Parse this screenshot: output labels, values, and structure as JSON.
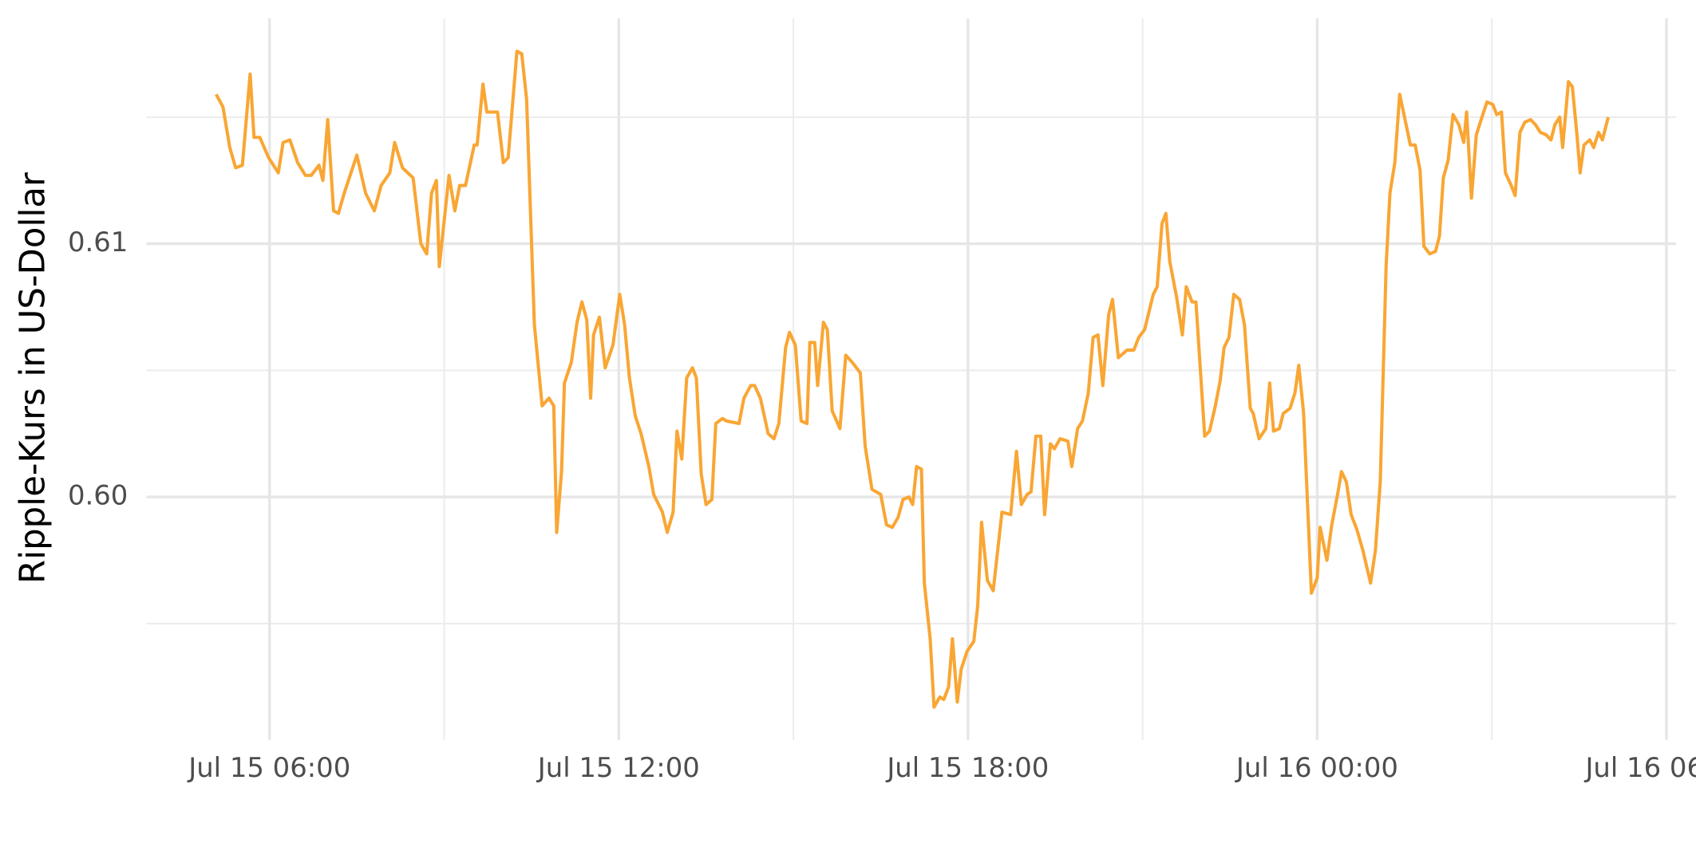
{
  "chart_data": {
    "type": "line",
    "y_label": "Ripple-Kurs in US-Dollar",
    "color": "#f9a634",
    "xlim": [
      "Jul 15 03:53",
      "Jul 16 06:10"
    ],
    "xticks": [
      "Jul 15 06:00",
      "Jul 15 12:00",
      "Jul 15 18:00",
      "Jul 16 00:00",
      "Jul 16 06:00"
    ],
    "minor_xticks": [
      "Jul 15 09:00",
      "Jul 15 15:00",
      "Jul 15 21:00",
      "Jul 16 03:00"
    ],
    "ylim": [
      0.5904,
      0.6189
    ],
    "yticks": [
      {
        "value": 0.6,
        "label": "0.60"
      },
      0.61
    ],
    "minor_yticks": [
      0.595,
      0.605,
      0.615
    ],
    "grid": true,
    "x": [
      "Jul 15 05:05",
      "Jul 15 05:12",
      "Jul 15 05:19",
      "Jul 15 05:25",
      "Jul 15 05:32",
      "Jul 15 05:40",
      "Jul 15 05:44",
      "Jul 15 05:50",
      "Jul 15 05:59",
      "Jul 15 06:09",
      "Jul 15 06:14",
      "Jul 15 06:21",
      "Jul 15 06:29",
      "Jul 15 06:37",
      "Jul 15 06:43",
      "Jul 15 06:51",
      "Jul 15 06:55",
      "Jul 15 07:00",
      "Jul 15 07:06",
      "Jul 15 07:11",
      "Jul 15 07:17",
      "Jul 15 07:30",
      "Jul 15 07:39",
      "Jul 15 07:48",
      "Jul 15 07:55",
      "Jul 15 08:04",
      "Jul 15 08:09",
      "Jul 15 08:17",
      "Jul 15 08:28",
      "Jul 15 08:36",
      "Jul 15 08:42",
      "Jul 15 08:47",
      "Jul 15 08:52",
      "Jul 15 08:55",
      "Jul 15 09:05",
      "Jul 15 09:11",
      "Jul 15 09:16",
      "Jul 15 09:22",
      "Jul 15 09:31",
      "Jul 15 09:34",
      "Jul 15 09:40",
      "Jul 15 09:44",
      "Jul 15 09:55",
      "Jul 15 10:01",
      "Jul 15 10:06",
      "Jul 15 10:15",
      "Jul 15 10:20",
      "Jul 15 10:25",
      "Jul 15 10:33",
      "Jul 15 10:41",
      "Jul 15 10:48",
      "Jul 15 10:53",
      "Jul 15 10:56",
      "Jul 15 11:01",
      "Jul 15 11:04",
      "Jul 15 11:11",
      "Jul 15 11:17",
      "Jul 15 11:22",
      "Jul 15 11:27",
      "Jul 15 11:31",
      "Jul 15 11:34",
      "Jul 15 11:40",
      "Jul 15 11:46",
      "Jul 15 11:54",
      "Jul 15 12:01",
      "Jul 15 12:06",
      "Jul 15 12:11",
      "Jul 15 12:17",
      "Jul 15 12:23",
      "Jul 15 12:31",
      "Jul 15 12:36",
      "Jul 15 12:45",
      "Jul 15 12:50",
      "Jul 15 12:56",
      "Jul 15 13:00",
      "Jul 15 13:05",
      "Jul 15 13:10",
      "Jul 15 13:16",
      "Jul 15 13:20",
      "Jul 15 13:25",
      "Jul 15 13:30",
      "Jul 15 13:36",
      "Jul 15 13:40",
      "Jul 15 13:47",
      "Jul 15 13:51",
      "Jul 15 14:04",
      "Jul 15 14:09",
      "Jul 15 14:16",
      "Jul 15 14:20",
      "Jul 15 14:26",
      "Jul 15 14:34",
      "Jul 15 14:40",
      "Jul 15 14:45",
      "Jul 15 14:52",
      "Jul 15 14:56",
      "Jul 15 15:02",
      "Jul 15 15:08",
      "Jul 15 15:14",
      "Jul 15 15:17",
      "Jul 15 15:22",
      "Jul 15 15:25",
      "Jul 15 15:31",
      "Jul 15 15:35",
      "Jul 15 15:40",
      "Jul 15 15:48",
      "Jul 15 15:54",
      "Jul 15 16:01",
      "Jul 15 16:09",
      "Jul 15 16:14",
      "Jul 15 16:21",
      "Jul 15 16:30",
      "Jul 15 16:36",
      "Jul 15 16:42",
      "Jul 15 16:48",
      "Jul 15 16:53",
      "Jul 15 16:59",
      "Jul 15 17:03",
      "Jul 15 17:07",
      "Jul 15 17:12",
      "Jul 15 17:15",
      "Jul 15 17:21",
      "Jul 15 17:25",
      "Jul 15 17:31",
      "Jul 15 17:35",
      "Jul 15 17:40",
      "Jul 15 17:44",
      "Jul 15 17:49",
      "Jul 15 17:53",
      "Jul 15 17:59",
      "Jul 15 18:06",
      "Jul 15 18:10",
      "Jul 15 18:14",
      "Jul 15 18:20",
      "Jul 15 18:26",
      "Jul 15 18:35",
      "Jul 15 18:44",
      "Jul 15 18:50",
      "Jul 15 18:55",
      "Jul 15 19:01",
      "Jul 15 19:05",
      "Jul 15 19:10",
      "Jul 15 19:15",
      "Jul 15 19:19",
      "Jul 15 19:25",
      "Jul 15 19:29",
      "Jul 15 19:35",
      "Jul 15 19:43",
      "Jul 15 19:47",
      "Jul 15 19:53",
      "Jul 15 19:58",
      "Jul 15 20:04",
      "Jul 15 20:09",
      "Jul 15 20:14",
      "Jul 15 20:19",
      "Jul 15 20:25",
      "Jul 15 20:29",
      "Jul 15 20:35",
      "Jul 15 20:44",
      "Jul 15 20:51",
      "Jul 15 20:56",
      "Jul 15 21:02",
      "Jul 15 21:11",
      "Jul 15 21:15",
      "Jul 15 21:20",
      "Jul 15 21:24",
      "Jul 15 21:28",
      "Jul 15 21:35",
      "Jul 15 21:41",
      "Jul 15 21:45",
      "Jul 15 21:51",
      "Jul 15 21:55",
      "Jul 15 22:04",
      "Jul 15 22:09",
      "Jul 15 22:15",
      "Jul 15 22:20",
      "Jul 15 22:24",
      "Jul 15 22:29",
      "Jul 15 22:34",
      "Jul 15 22:40",
      "Jul 15 22:45",
      "Jul 15 22:51",
      "Jul 15 22:54",
      "Jul 15 23:00",
      "Jul 15 23:07",
      "Jul 15 23:11",
      "Jul 15 23:15",
      "Jul 15 23:21",
      "Jul 15 23:25",
      "Jul 15 23:32",
      "Jul 15 23:37",
      "Jul 15 23:41",
      "Jul 15 23:46",
      "Jul 15 23:54",
      "Jul 16 00:00",
      "Jul 16 00:03",
      "Jul 16 00:10",
      "Jul 16 00:15",
      "Jul 16 00:21",
      "Jul 16 00:25",
      "Jul 16 00:30",
      "Jul 16 00:35",
      "Jul 16 00:41",
      "Jul 16 00:47",
      "Jul 16 00:55",
      "Jul 16 01:00",
      "Jul 16 01:05",
      "Jul 16 01:11",
      "Jul 16 01:15",
      "Jul 16 01:20",
      "Jul 16 01:25",
      "Jul 16 01:30",
      "Jul 16 01:36",
      "Jul 16 01:41",
      "Jul 16 01:46",
      "Jul 16 01:50",
      "Jul 16 01:56",
      "Jul 16 02:02",
      "Jul 16 02:06",
      "Jul 16 02:10",
      "Jul 16 02:15",
      "Jul 16 02:20",
      "Jul 16 02:26",
      "Jul 16 02:31",
      "Jul 16 02:34",
      "Jul 16 02:39",
      "Jul 16 02:44",
      "Jul 16 02:49",
      "Jul 16 02:55",
      "Jul 16 03:01",
      "Jul 16 03:05",
      "Jul 16 03:10",
      "Jul 16 03:14",
      "Jul 16 03:20",
      "Jul 16 03:24",
      "Jul 16 03:29",
      "Jul 16 03:34",
      "Jul 16 03:40",
      "Jul 16 03:45",
      "Jul 16 03:50",
      "Jul 16 03:56",
      "Jul 16 04:01",
      "Jul 16 04:05",
      "Jul 16 04:10",
      "Jul 16 04:13",
      "Jul 16 04:19",
      "Jul 16 04:23",
      "Jul 16 04:28",
      "Jul 16 04:31",
      "Jul 16 04:35",
      "Jul 16 04:41",
      "Jul 16 04:45",
      "Jul 16 04:50",
      "Jul 16 04:54",
      "Jul 16 05:00"
    ],
    "values": [
      0.6159,
      0.6154,
      0.6138,
      0.613,
      0.6131,
      0.6167,
      0.6142,
      0.6142,
      0.6134,
      0.6128,
      0.614,
      0.6141,
      0.6132,
      0.6127,
      0.6127,
      0.6131,
      0.6125,
      0.6149,
      0.6113,
      0.6112,
      0.612,
      0.6135,
      0.612,
      0.6113,
      0.6123,
      0.6128,
      0.614,
      0.613,
      0.6126,
      0.61,
      0.6096,
      0.612,
      0.6125,
      0.6091,
      0.6127,
      0.6113,
      0.6123,
      0.6123,
      0.6139,
      0.6139,
      0.6163,
      0.6152,
      0.6152,
      0.6132,
      0.6134,
      0.6176,
      0.6175,
      0.6157,
      0.6068,
      0.6036,
      0.6039,
      0.6036,
      0.5986,
      0.601,
      0.6045,
      0.6053,
      0.6069,
      0.6077,
      0.607,
      0.6039,
      0.6064,
      0.6071,
      0.6051,
      0.606,
      0.608,
      0.6068,
      0.6047,
      0.6032,
      0.6025,
      0.6012,
      0.6001,
      0.5994,
      0.5986,
      0.5994,
      0.6026,
      0.6015,
      0.6047,
      0.6051,
      0.6047,
      0.6009,
      0.5997,
      0.5999,
      0.6029,
      0.6031,
      0.603,
      0.6029,
      0.6039,
      0.6044,
      0.6044,
      0.6039,
      0.6025,
      0.6023,
      0.6029,
      0.6059,
      0.6065,
      0.606,
      0.603,
      0.6029,
      0.6061,
      0.6061,
      0.6044,
      0.6069,
      0.6066,
      0.6034,
      0.6027,
      0.6056,
      0.6053,
      0.6049,
      0.602,
      0.6003,
      0.6001,
      0.5989,
      0.5988,
      0.5992,
      0.5999,
      0.6,
      0.5997,
      0.6012,
      0.6011,
      0.5966,
      0.5944,
      0.5917,
      0.5921,
      0.592,
      0.5925,
      0.5944,
      0.5919,
      0.5932,
      0.5939,
      0.5943,
      0.5957,
      0.599,
      0.5967,
      0.5963,
      0.5994,
      0.5993,
      0.6018,
      0.5997,
      0.6001,
      0.6002,
      0.6024,
      0.6024,
      0.5993,
      0.6021,
      0.6019,
      0.6023,
      0.6022,
      0.6012,
      0.6027,
      0.603,
      0.6041,
      0.6063,
      0.6064,
      0.6044,
      0.6072,
      0.6078,
      0.6055,
      0.6058,
      0.6058,
      0.6063,
      0.6066,
      0.608,
      0.6083,
      0.6108,
      0.6112,
      0.6093,
      0.6079,
      0.6064,
      0.6083,
      0.6077,
      0.6077,
      0.6024,
      0.6026,
      0.6036,
      0.6046,
      0.6059,
      0.6063,
      0.608,
      0.6078,
      0.6068,
      0.6035,
      0.6033,
      0.6023,
      0.6027,
      0.6045,
      0.6026,
      0.6027,
      0.6033,
      0.6035,
      0.6041,
      0.6052,
      0.6033,
      0.5962,
      0.5968,
      0.5988,
      0.5975,
      0.5989,
      0.6001,
      0.601,
      0.6006,
      0.5993,
      0.5987,
      0.5979,
      0.5966,
      0.5979,
      0.6006,
      0.6091,
      0.612,
      0.6132,
      0.6159,
      0.615,
      0.6139,
      0.6139,
      0.6129,
      0.6099,
      0.6096,
      0.6097,
      0.6103,
      0.6126,
      0.6133,
      0.6151,
      0.6147,
      0.614,
      0.6152,
      0.6118,
      0.6143,
      0.6149,
      0.6156,
      0.6155,
      0.6151,
      0.6152,
      0.6128,
      0.6123,
      0.6119,
      0.6144,
      0.6148,
      0.6149,
      0.6147,
      0.6144,
      0.6143,
      0.6141,
      0.6147,
      0.615,
      0.6138,
      0.6164,
      0.6162,
      0.6142,
      0.6128,
      0.6139,
      0.6141,
      0.6138,
      0.6144,
      0.6141,
      0.615
    ]
  }
}
